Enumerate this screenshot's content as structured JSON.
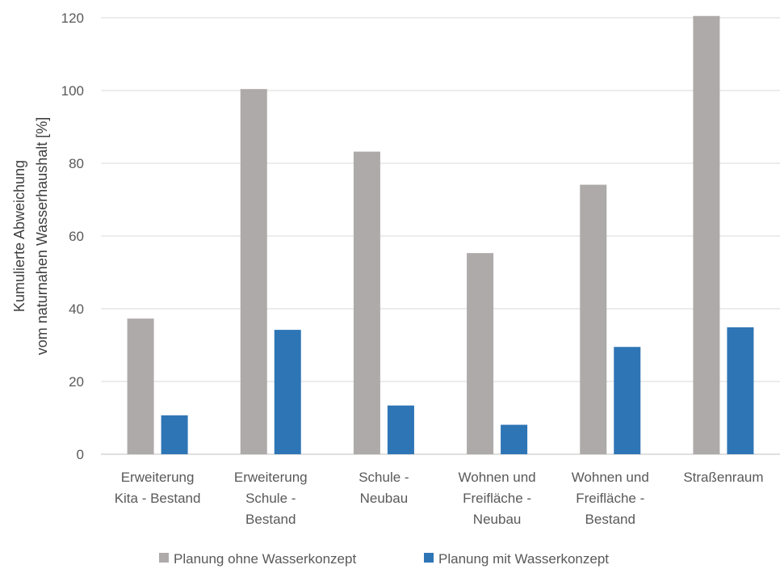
{
  "chart_data": {
    "type": "bar",
    "title": "",
    "ylabel": [
      "Kumulierte Abweichung",
      "vom naturnahen Wasserhaushalt [%]"
    ],
    "xlabel": "",
    "ylim": [
      0,
      120
    ],
    "yticks": [
      0,
      20,
      40,
      60,
      80,
      100,
      120
    ],
    "grid": true,
    "legend_position": "bottom",
    "categories": [
      [
        "Erweiterung",
        "Kita - Bestand"
      ],
      [
        "Erweiterung",
        "Schule -",
        "Bestand"
      ],
      [
        "Schule -",
        "Neubau"
      ],
      [
        "Wohnen und",
        "Freifläche -",
        "Neubau"
      ],
      [
        "Wohnen und",
        "Freifläche -",
        "Bestand"
      ],
      [
        "Straßenraum"
      ]
    ],
    "series": [
      {
        "name": "Planung ohne Wasserkonzept",
        "color": "#aeaaaa",
        "values": [
          37.3,
          100.4,
          83.2,
          55.3,
          74.1,
          120.5
        ]
      },
      {
        "name": "Planung mit Wasserkonzept",
        "color": "#2e75b6",
        "values": [
          10.7,
          34.2,
          13.4,
          8.1,
          29.5,
          34.9
        ]
      }
    ]
  }
}
